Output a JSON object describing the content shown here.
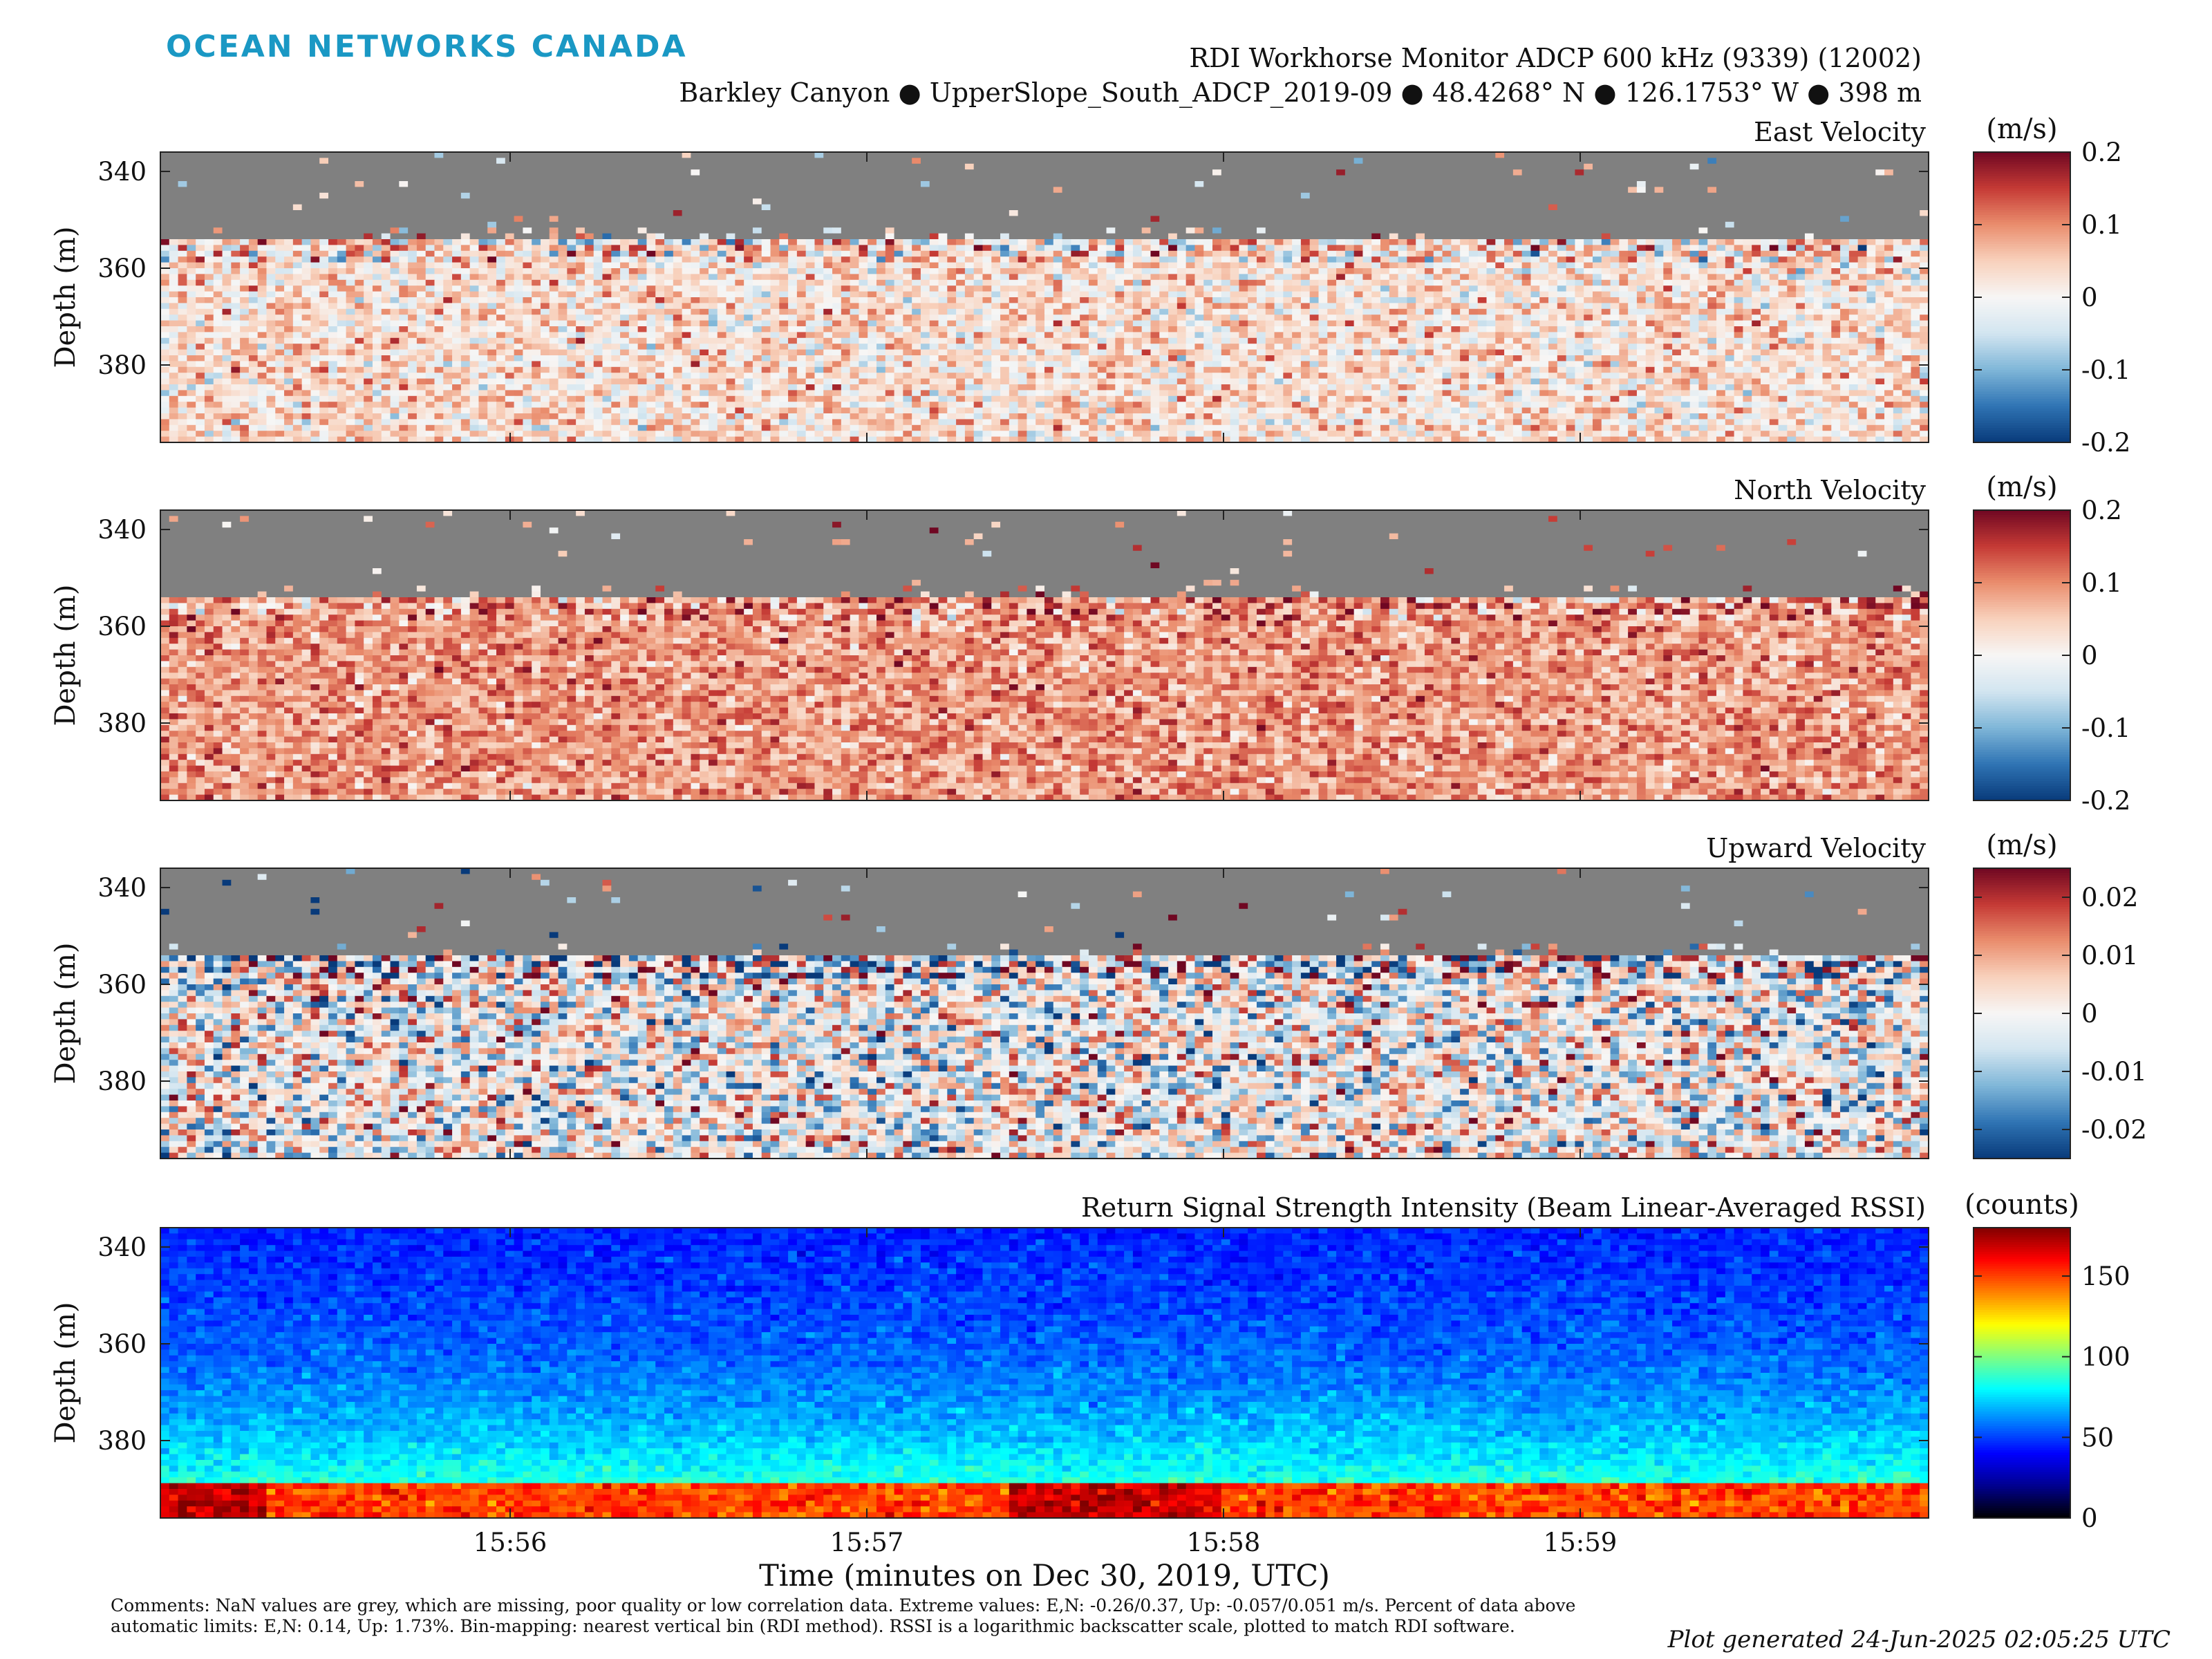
{
  "header": {
    "logo": "OCEAN NETWORKS CANADA",
    "title_line1": "RDI Workhorse Monitor ADCP 600 kHz (9339) (12002)",
    "title_line2": "Barkley Canyon ● UpperSlope_South_ADCP_2019-09 ● 48.4268° N ● 126.1753° W ● 398 m"
  },
  "footer": {
    "comments": "Comments: NaN values are grey, which are missing, poor quality or low correlation data. Extreme values: E,N: -0.26/0.37, Up: -0.057/0.051 m/s. Percent of data above automatic limits: E,N: 0.14, Up: 1.73%. Bin-mapping: nearest vertical bin (RDI method). RSSI is a logarithmic backscatter scale, plotted to match RDI software.",
    "generated": "Plot generated 24-Jun-2025 02:05:25 UTC"
  },
  "colors": {
    "nan": "#808080",
    "diverging": [
      "#083a7a",
      "#2f74b4",
      "#7fb6d8",
      "#d2e5f0",
      "#f7f6f5",
      "#f8d1bc",
      "#ea8d6d",
      "#c53a35",
      "#6f0722"
    ],
    "jet": [
      "#000000",
      "#00008f",
      "#0000ff",
      "#0080ff",
      "#00ffff",
      "#80ff80",
      "#ffff00",
      "#ff8000",
      "#ff0000",
      "#800000"
    ]
  },
  "chart_data": [
    {
      "type": "heatmap",
      "title": "East Velocity",
      "ylabel": "Depth (m)",
      "ylim": [
        396,
        336
      ],
      "yticks": [
        340,
        360,
        380
      ],
      "xticks": [
        "15:56",
        "15:57",
        "15:58",
        "15:59"
      ],
      "clim": [
        -0.2,
        0.2
      ],
      "cbar_ticks": [
        "0.2",
        "0.1",
        "0",
        "-0.1",
        "-0.2"
      ],
      "cbar_label": "(m/s)",
      "colormap": "diverging",
      "nan_above_depth": 356,
      "mean": 0.03,
      "spread": 0.05
    },
    {
      "type": "heatmap",
      "title": "North Velocity",
      "ylabel": "Depth (m)",
      "ylim": [
        396,
        336
      ],
      "yticks": [
        340,
        360,
        380
      ],
      "xticks": [
        "15:56",
        "15:57",
        "15:58",
        "15:59"
      ],
      "clim": [
        -0.2,
        0.2
      ],
      "cbar_ticks": [
        "0.2",
        "0.1",
        "0",
        "-0.1",
        "-0.2"
      ],
      "cbar_label": "(m/s)",
      "colormap": "diverging",
      "nan_above_depth": 356,
      "mean": 0.09,
      "spread": 0.04
    },
    {
      "type": "heatmap",
      "title": "Upward Velocity",
      "ylabel": "Depth (m)",
      "ylim": [
        396,
        336
      ],
      "yticks": [
        340,
        360,
        380
      ],
      "xticks": [
        "15:56",
        "15:57",
        "15:58",
        "15:59"
      ],
      "clim": [
        -0.025,
        0.025
      ],
      "cbar_ticks": [
        "0.02",
        "0.01",
        "0",
        "-0.01",
        "-0.02"
      ],
      "cbar_label": "(m/s)",
      "colormap": "diverging",
      "nan_above_depth": 356,
      "mean": 0.0,
      "spread": 0.011
    },
    {
      "type": "heatmap",
      "title": "Return Signal Strength Intensity (Beam Linear-Averaged RSSI)",
      "ylabel": "Depth (m)",
      "xlabel": "Time (minutes on Dec 30, 2019, UTC)",
      "ylim": [
        396,
        336
      ],
      "yticks": [
        340,
        360,
        380
      ],
      "xticks": [
        "15:56",
        "15:57",
        "15:58",
        "15:59"
      ],
      "clim": [
        0,
        180
      ],
      "cbar_ticks": [
        "150",
        "100",
        "50",
        "0"
      ],
      "cbar_label": "(counts)",
      "colormap": "jet",
      "surface_value": 45,
      "bottom_value": 150
    }
  ]
}
